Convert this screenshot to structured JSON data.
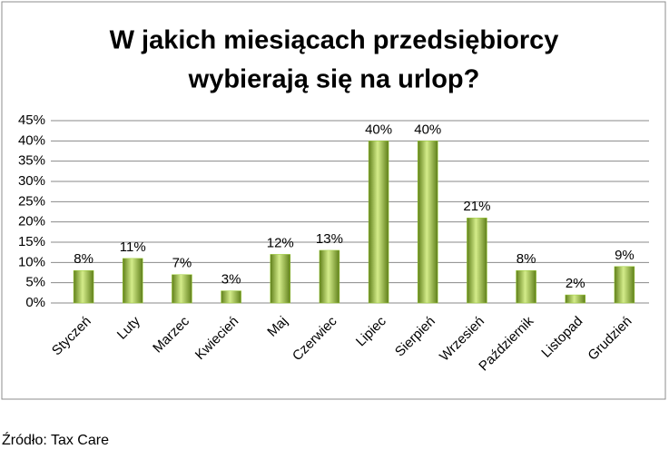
{
  "chart_data": {
    "type": "bar",
    "title_lines": [
      "W jakich miesiącach przedsiębiorcy",
      "wybierają się na urlop?"
    ],
    "categories": [
      "Styczeń",
      "Luty",
      "Marzec",
      "Kwiecień",
      "Maj",
      "Czerwiec",
      "Lipiec",
      "Sierpień",
      "Wrzesień",
      "Październik",
      "Listopad",
      "Grudzień"
    ],
    "values": [
      8,
      11,
      7,
      3,
      12,
      13,
      40,
      40,
      21,
      8,
      2,
      9
    ],
    "value_labels": [
      "8%",
      "11%",
      "7%",
      "3%",
      "12%",
      "13%",
      "40%",
      "40%",
      "21%",
      "8%",
      "2%",
      "9%"
    ],
    "color": "#9acd32",
    "ylim": [
      0,
      45
    ],
    "yticks": [
      {
        "value": 0,
        "label": "0%"
      },
      {
        "value": 5,
        "label": "5%"
      },
      {
        "value": 10,
        "label": "10%"
      },
      {
        "value": 15,
        "label": "15%"
      },
      {
        "value": 20,
        "label": "20%"
      },
      {
        "value": 25,
        "label": "25%"
      },
      {
        "value": 30,
        "label": "30%"
      },
      {
        "value": 35,
        "label": "35%"
      },
      {
        "value": 40,
        "label": "40%"
      },
      {
        "value": 45,
        "label": "45%"
      }
    ],
    "grid": true
  },
  "source": "Źródło: Tax Care"
}
